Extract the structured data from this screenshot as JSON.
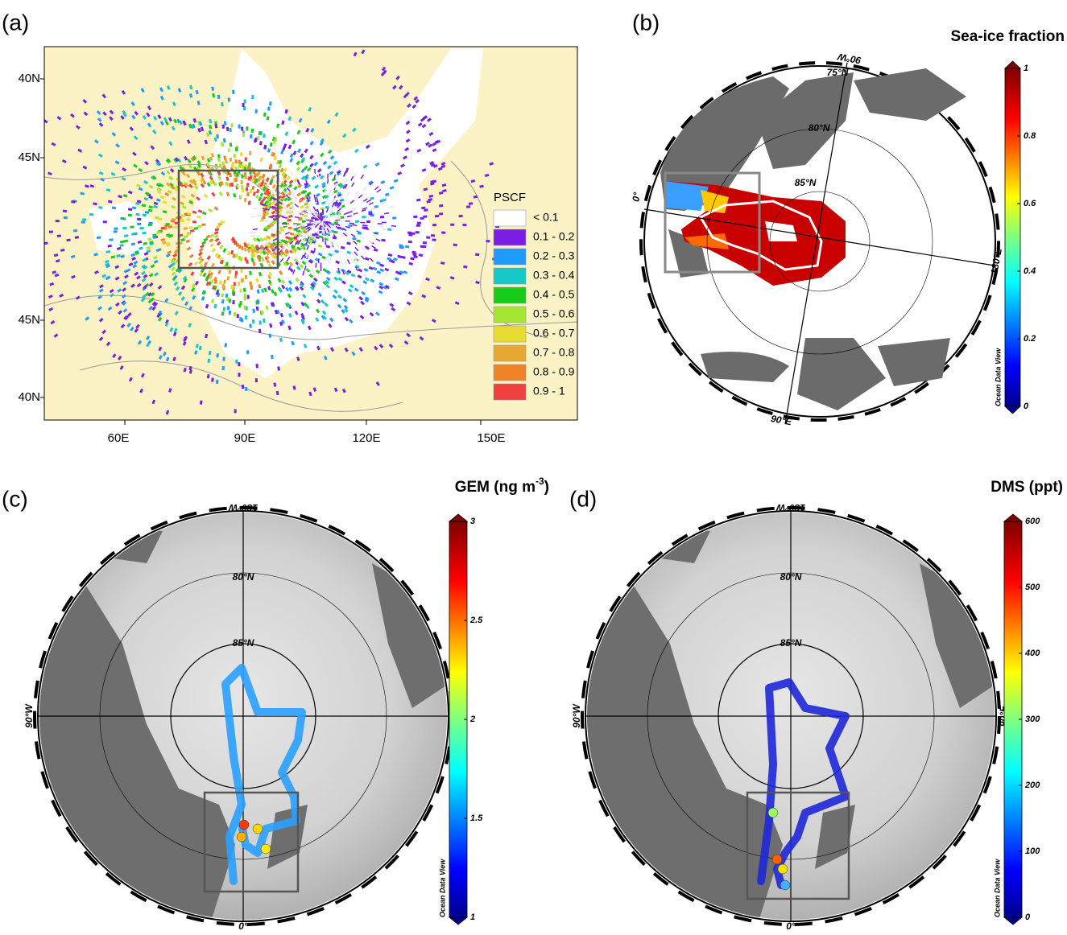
{
  "panels": [
    {
      "label": "(a)",
      "lat_labels": [
        "40N",
        "45N",
        "45N",
        "40N"
      ],
      "lon_labels": [
        "60E",
        "90E",
        "120E",
        "150E"
      ],
      "legend": {
        "title": "PSCF",
        "items": [
          {
            "label": "< 0.1",
            "color": "#ffffff"
          },
          {
            "label": "0.1 - 0.2",
            "color": "#7a1ee6"
          },
          {
            "label": "0.2 - 0.3",
            "color": "#1e9bff"
          },
          {
            "label": "0.3 - 0.4",
            "color": "#17c8c8"
          },
          {
            "label": "0.4 - 0.5",
            "color": "#19cc19"
          },
          {
            "label": "0.5 - 0.6",
            "color": "#a5e632"
          },
          {
            "label": "0.6 - 0.7",
            "color": "#e6dc32"
          },
          {
            "label": "0.7 - 0.8",
            "color": "#e6aa32"
          },
          {
            "label": "0.8 - 0.9",
            "color": "#f08228"
          },
          {
            "label": "0.9 - 1",
            "color": "#f04141"
          }
        ]
      }
    },
    {
      "label": "(b)",
      "title": "Sea-ice fraction",
      "map_labels": [
        "75°N",
        "80°N",
        "85°N",
        "90°W",
        "0°",
        "180°E",
        "90°E"
      ],
      "colorbar": {
        "range": [
          0,
          1
        ],
        "ticks": [
          0,
          0.2,
          0.4,
          0.6,
          0.8,
          1
        ],
        "note": "Ocean Data View"
      }
    },
    {
      "label": "(c)",
      "title": {
        "text": "GEM (ng m",
        "sup": "-3",
        "tail": ")"
      },
      "map_labels": [
        "180°W",
        "80°N",
        "85°N",
        "90°W",
        "90°E",
        "0°"
      ],
      "colorbar": {
        "range": [
          1,
          3
        ],
        "ticks": [
          1,
          1.5,
          2,
          2.5,
          3
        ],
        "note": "Ocean Data View"
      }
    },
    {
      "label": "(d)",
      "title": "DMS (ppt)",
      "map_labels": [
        "180°W",
        "80°N",
        "85°N",
        "90°W",
        "90°E",
        "0°"
      ],
      "colorbar": {
        "range": [
          0,
          600
        ],
        "ticks": [
          0,
          100,
          200,
          300,
          400,
          500,
          600
        ],
        "note": "Ocean Data View"
      }
    }
  ]
}
